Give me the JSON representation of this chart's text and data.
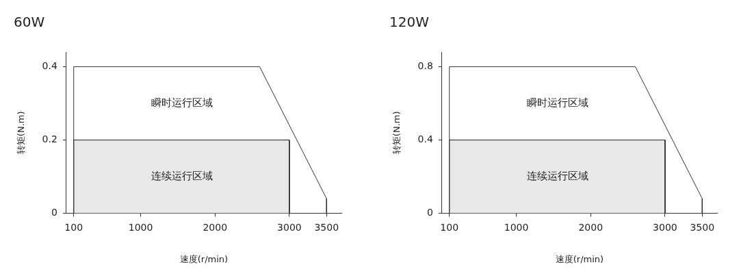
{
  "chart_data": [
    {
      "type": "line",
      "title": "60W",
      "xlabel": "速度(r/min)",
      "ylabel": "转矩(N.m)",
      "xlim": [
        0,
        3700
      ],
      "xticks": [
        100,
        1000,
        2000,
        3000,
        3500
      ],
      "ylim": [
        0,
        0.44
      ],
      "yticks": [
        0,
        0.2,
        0.4
      ],
      "legend": false,
      "marker": "none",
      "series": [
        {
          "color": "#333333",
          "x": [
            100,
            100,
            2600,
            3500,
            3500
          ],
          "values": [
            0,
            0.4,
            0.4,
            0.04,
            0
          ]
        },
        {
          "type": "area",
          "color": "#e8e8e8",
          "x": [
            100,
            100,
            3000,
            3000
          ],
          "values": [
            0,
            0.2,
            0.2,
            0
          ]
        }
      ],
      "annotations": [
        "瞬时运行区域",
        "连续运行区域"
      ]
    },
    {
      "type": "line",
      "title": "120W",
      "xlabel": "速度(r/min)",
      "ylabel": "转矩(N.m)",
      "xlim": [
        0,
        3700
      ],
      "xticks": [
        100,
        1000,
        2000,
        3000,
        3500
      ],
      "ylim": [
        0,
        0.88
      ],
      "yticks": [
        0,
        0.4,
        0.8
      ],
      "legend": false,
      "marker": "none",
      "series": [
        {
          "color": "#333333",
          "x": [
            100,
            100,
            2600,
            3500,
            3500
          ],
          "values": [
            0,
            0.8,
            0.8,
            0.08,
            0
          ]
        },
        {
          "type": "area",
          "color": "#e8e8e8",
          "x": [
            100,
            100,
            3000,
            3000
          ],
          "values": [
            0,
            0.4,
            0.4,
            0
          ]
        }
      ],
      "annotations": [
        "瞬时运行区域",
        "连续运行区域"
      ]
    }
  ]
}
